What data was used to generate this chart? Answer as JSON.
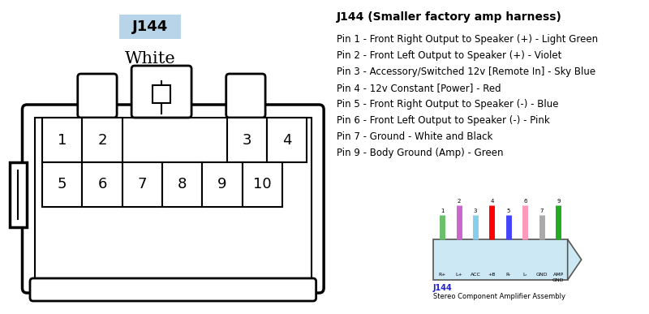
{
  "title": "J144 (Smaller factory amp harness)",
  "connector_label": "J144",
  "connector_color_label": "White",
  "connector_bg": "#b8d4e8",
  "pins": [
    {
      "num": 1,
      "desc": "Front Right Output to Speaker (+) - Light Green"
    },
    {
      "num": 2,
      "desc": "Front Left Output to Speaker (+) - Violet"
    },
    {
      "num": 3,
      "desc": "Accessory/Switched 12v [Remote In] - Sky Blue"
    },
    {
      "num": 4,
      "desc": "12v Constant [Power] - Red"
    },
    {
      "num": 5,
      "desc": "Front Right Output to Speaker (-) - Blue"
    },
    {
      "num": 6,
      "desc": "Front Left Output to Speaker (-) - Pink"
    },
    {
      "num": 7,
      "desc": "Ground - White and Black"
    },
    {
      "num": 9,
      "desc": "Body Ground (Amp) - Green"
    }
  ],
  "wire_colors": [
    "#6abf6a",
    "#cc66cc",
    "#87CEEB",
    "#FF0000",
    "#4444FF",
    "#FF99BB",
    "#aaaaaa",
    "#22aa22"
  ],
  "wire_labels": [
    "R+",
    "L+",
    "ACC",
    "+B",
    "R-",
    "L-",
    "GND",
    "AMP\nGND"
  ],
  "wire_pin_labels": [
    "1",
    "2",
    "3",
    "4",
    "5",
    "6",
    "7",
    "9"
  ],
  "mini_connector_bg": "#cde8f5",
  "mini_label": "J144",
  "mini_sublabel": "Stereo Component Amplifier Assembly"
}
